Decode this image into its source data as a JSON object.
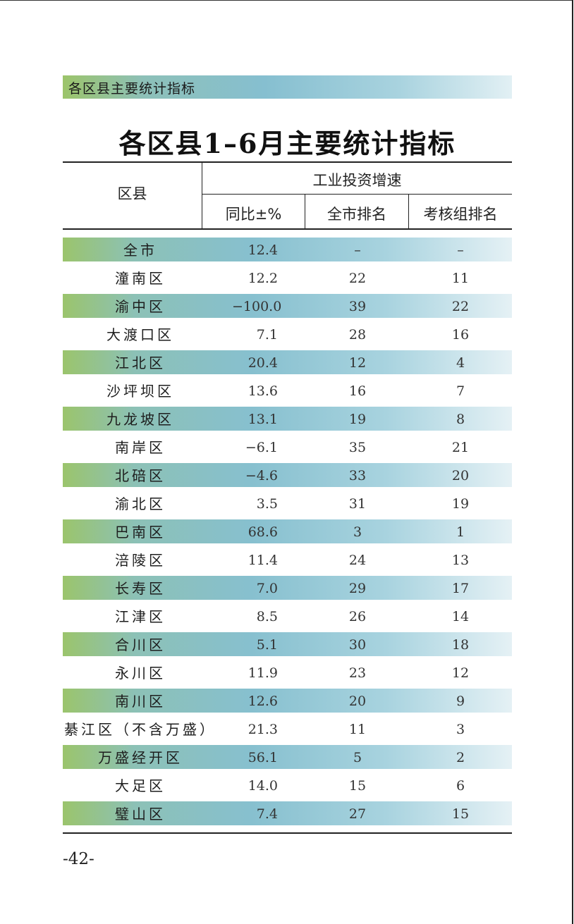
{
  "section_header": "各区县主要统计指标",
  "title": "各区县1–6月主要统计指标",
  "table": {
    "col_district": "区县",
    "col_group": "工业投资增速",
    "subcols": [
      "同比±%",
      "全市排名",
      "考核组排名"
    ],
    "rows": [
      {
        "name": "全市",
        "yoy": "12.4",
        "city_rank": "–",
        "group_rank": "–",
        "shaded": true
      },
      {
        "name": "潼南区",
        "yoy": "12.2",
        "city_rank": "22",
        "group_rank": "11",
        "shaded": false
      },
      {
        "name": "渝中区",
        "yoy": "−100.0",
        "city_rank": "39",
        "group_rank": "22",
        "shaded": true
      },
      {
        "name": "大渡口区",
        "yoy": "7.1",
        "city_rank": "28",
        "group_rank": "16",
        "shaded": false
      },
      {
        "name": "江北区",
        "yoy": "20.4",
        "city_rank": "12",
        "group_rank": "4",
        "shaded": true
      },
      {
        "name": "沙坪坝区",
        "yoy": "13.6",
        "city_rank": "16",
        "group_rank": "7",
        "shaded": false
      },
      {
        "name": "九龙坡区",
        "yoy": "13.1",
        "city_rank": "19",
        "group_rank": "8",
        "shaded": true
      },
      {
        "name": "南岸区",
        "yoy": "−6.1",
        "city_rank": "35",
        "group_rank": "21",
        "shaded": false
      },
      {
        "name": "北碚区",
        "yoy": "−4.6",
        "city_rank": "33",
        "group_rank": "20",
        "shaded": true
      },
      {
        "name": "渝北区",
        "yoy": "3.5",
        "city_rank": "31",
        "group_rank": "19",
        "shaded": false
      },
      {
        "name": "巴南区",
        "yoy": "68.6",
        "city_rank": "3",
        "group_rank": "1",
        "shaded": true
      },
      {
        "name": "涪陵区",
        "yoy": "11.4",
        "city_rank": "24",
        "group_rank": "13",
        "shaded": false
      },
      {
        "name": "长寿区",
        "yoy": "7.0",
        "city_rank": "29",
        "group_rank": "17",
        "shaded": true
      },
      {
        "name": "江津区",
        "yoy": "8.5",
        "city_rank": "26",
        "group_rank": "14",
        "shaded": false
      },
      {
        "name": "合川区",
        "yoy": "5.1",
        "city_rank": "30",
        "group_rank": "18",
        "shaded": true
      },
      {
        "name": "永川区",
        "yoy": "11.9",
        "city_rank": "23",
        "group_rank": "12",
        "shaded": false
      },
      {
        "name": "南川区",
        "yoy": "12.6",
        "city_rank": "20",
        "group_rank": "9",
        "shaded": true
      },
      {
        "name": "綦江区（不含万盛）",
        "yoy": "21.3",
        "city_rank": "11",
        "group_rank": "3",
        "shaded": false
      },
      {
        "name": "万盛经开区",
        "yoy": "56.1",
        "city_rank": "5",
        "group_rank": "2",
        "shaded": true
      },
      {
        "name": "大足区",
        "yoy": "14.0",
        "city_rank": "15",
        "group_rank": "6",
        "shaded": false
      },
      {
        "name": "璧山区",
        "yoy": "7.4",
        "city_rank": "27",
        "group_rank": "15",
        "shaded": true
      }
    ]
  },
  "page_number": "-42-"
}
